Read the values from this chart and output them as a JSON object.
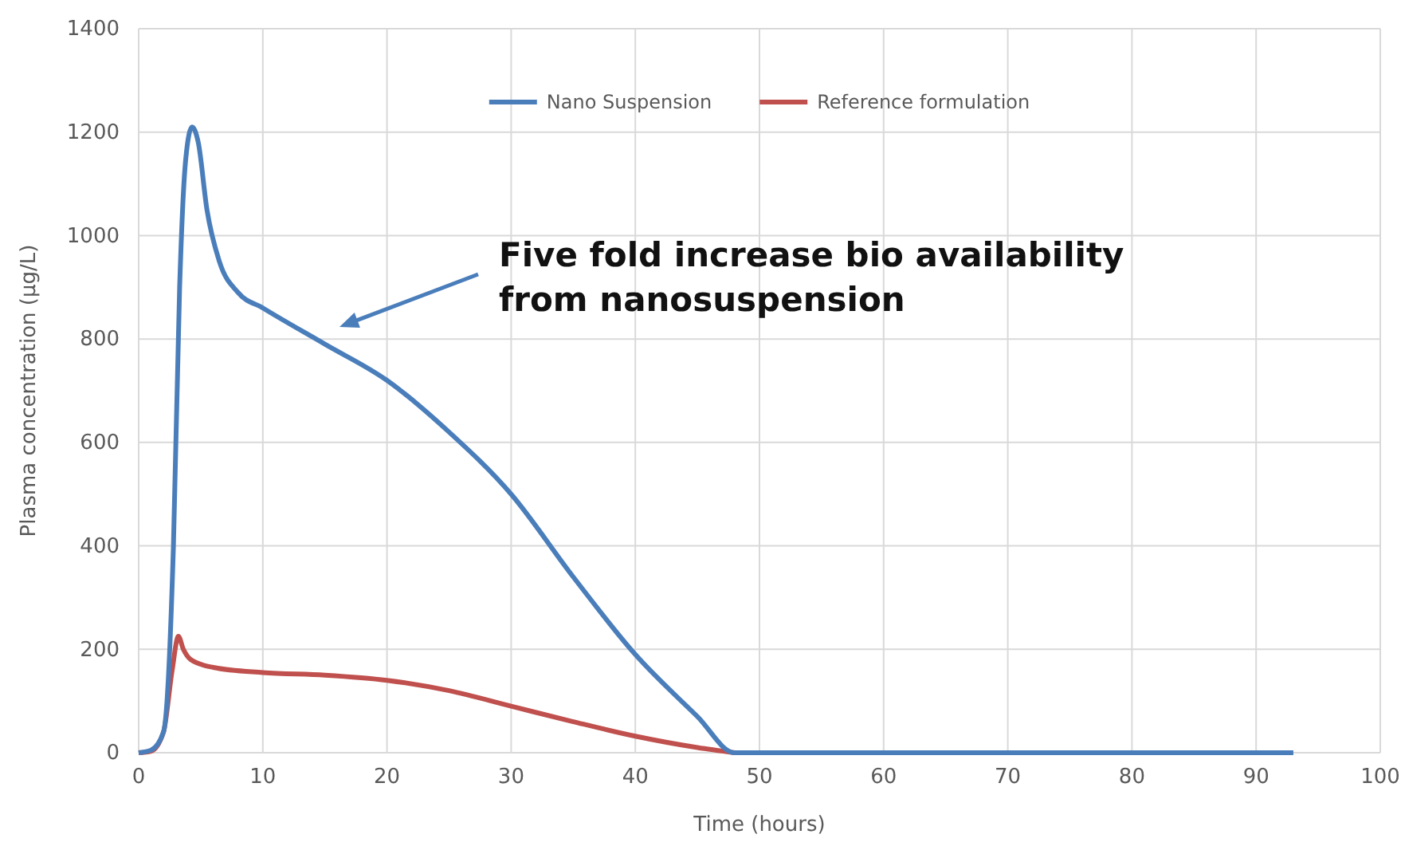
{
  "chart_data": {
    "type": "line",
    "xlabel": "Time (hours)",
    "ylabel": "Plasma concentration (µg/L)",
    "xlim": [
      0,
      100
    ],
    "xticks": [
      0,
      10,
      20,
      30,
      40,
      50,
      60,
      70,
      80,
      90,
      100
    ],
    "ylim": [
      0,
      1400
    ],
    "yticks": [
      0,
      200,
      400,
      600,
      800,
      1000,
      1200,
      1400
    ],
    "grid": true,
    "legend": "top",
    "line_style": "solid",
    "marker": "none",
    "series": [
      {
        "name": "Nano Suspension",
        "color": "#4a7ebb",
        "x": [
          0,
          1,
          2,
          2.8,
          3.3,
          3.8,
          4.3,
          4.8,
          5.5,
          6.5,
          8,
          10,
          15,
          20,
          25,
          30,
          35,
          40,
          45,
          48,
          93
        ],
        "values": [
          0,
          5,
          40,
          400,
          900,
          1150,
          1210,
          1180,
          1050,
          950,
          890,
          860,
          790,
          720,
          620,
          500,
          340,
          190,
          70,
          0,
          0
        ]
      },
      {
        "name": "Reference formulation",
        "color": "#c0504d",
        "x": [
          0,
          1,
          2,
          2.7,
          3.2,
          3.6,
          4.2,
          6,
          10,
          15,
          20,
          25,
          30,
          35,
          40,
          45,
          48
        ],
        "values": [
          0,
          3,
          40,
          160,
          225,
          200,
          180,
          165,
          155,
          150,
          140,
          120,
          90,
          60,
          32,
          10,
          0
        ]
      }
    ],
    "annotations": [
      "Five fold increase bio availability from nanosuspension"
    ]
  }
}
